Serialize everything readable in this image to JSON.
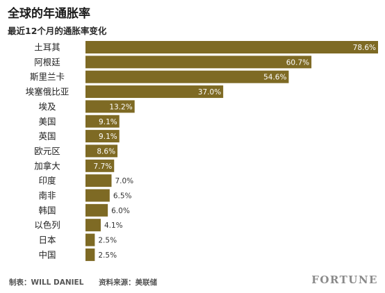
{
  "chart_data": {
    "type": "bar",
    "orientation": "horizontal",
    "title": "全球的年通胀率",
    "subtitle": "最近12个月的通胀率变化",
    "categories": [
      "土耳其",
      "阿根廷",
      "斯里兰卡",
      "埃塞俄比亚",
      "埃及",
      "美国",
      "英国",
      "欧元区",
      "加拿大",
      "印度",
      "南非",
      "韩国",
      "以色列",
      "日本",
      "中国"
    ],
    "values": [
      78.6,
      60.7,
      54.6,
      37.0,
      13.2,
      9.1,
      9.1,
      8.6,
      7.7,
      7.0,
      6.5,
      6.0,
      4.1,
      2.5,
      2.5
    ],
    "value_labels": [
      "78.6%",
      "60.7%",
      "54.6%",
      "37.0%",
      "13.2%",
      "9.1%",
      "9.1%",
      "8.6%",
      "7.7%",
      "7.0%",
      "6.5%",
      "6.0%",
      "4.1%",
      "2.5%",
      "2.5%"
    ],
    "xlim": [
      0,
      78.6
    ],
    "bar_color": "#7e6a24",
    "grid": false
  },
  "footer": {
    "credit": "制表：WILL DANIEL",
    "source": "资料来源：美联储",
    "brand": "FORTUNE"
  }
}
